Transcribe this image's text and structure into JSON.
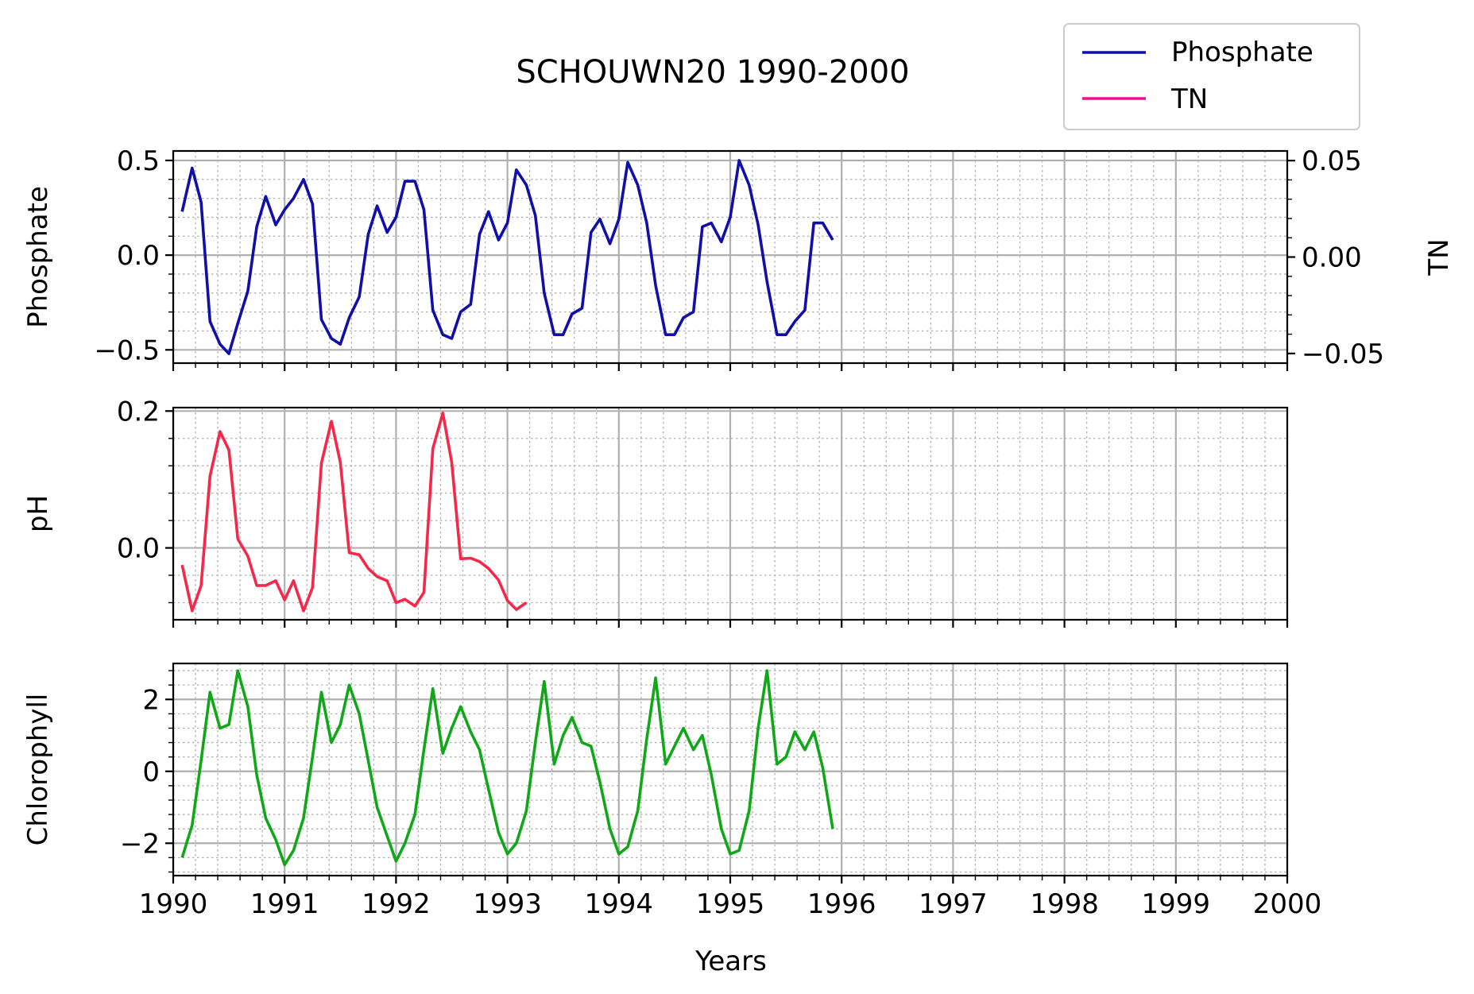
{
  "chart_data": {
    "type": "line",
    "title": "SCHOUWN20 1990-2000",
    "xlabel": "Years",
    "xlim": [
      1990,
      2000
    ],
    "x_ticks": [
      "1990",
      "1991",
      "1992",
      "1993",
      "1994",
      "1995",
      "1996",
      "1997",
      "1998",
      "1999",
      "2000"
    ],
    "grid": true,
    "legend": {
      "placement": "top-right",
      "entries": [
        {
          "label": "Phosphate",
          "color": "#1010a8"
        },
        {
          "label": "TN",
          "color": "#f0108f"
        }
      ]
    },
    "panels": [
      {
        "ylabel": "Phosphate",
        "ylim": [
          -0.57,
          0.55
        ],
        "yticks": [
          -0.5,
          0.0,
          0.5
        ],
        "ytick_labels": [
          "−0.5",
          "0.0",
          "0.5"
        ],
        "y2label": "TN",
        "y2lim": [
          -0.055,
          0.055
        ],
        "y2ticks": [
          -0.05,
          0.0,
          0.05
        ],
        "y2tick_labels": [
          "−0.05",
          "0.00",
          "0.05"
        ],
        "series": [
          {
            "name": "Phosphate",
            "color": "#1010a8",
            "x": [
              1990.08,
              1990.17,
              1990.25,
              1990.33,
              1990.42,
              1990.5,
              1990.58,
              1990.67,
              1990.75,
              1990.83,
              1990.92,
              1991.0,
              1991.08,
              1991.17,
              1991.25,
              1991.33,
              1991.42,
              1991.5,
              1991.58,
              1991.67,
              1991.75,
              1991.83,
              1991.92,
              1992.0,
              1992.08,
              1992.17,
              1992.25,
              1992.33,
              1992.42,
              1992.5,
              1992.58,
              1992.67,
              1992.75,
              1992.83,
              1992.92,
              1993.0,
              1993.08,
              1993.17,
              1993.25,
              1993.33,
              1993.42,
              1993.5,
              1993.58,
              1993.67,
              1993.75,
              1993.83,
              1993.92,
              1994.0,
              1994.08,
              1994.17,
              1994.25,
              1994.33,
              1994.42,
              1994.5,
              1994.58,
              1994.67,
              1994.75,
              1994.83,
              1994.92,
              1995.0,
              1995.08,
              1995.17,
              1995.25,
              1995.33,
              1995.42,
              1995.5,
              1995.58,
              1995.67,
              1995.75,
              1995.83,
              1995.92
            ],
            "values": [
              0.23,
              0.46,
              0.28,
              -0.35,
              -0.47,
              -0.52,
              -0.36,
              -0.19,
              0.15,
              0.31,
              0.16,
              0.24,
              0.3,
              0.4,
              0.27,
              -0.34,
              -0.44,
              -0.47,
              -0.33,
              -0.22,
              0.11,
              0.26,
              0.12,
              0.2,
              0.39,
              0.39,
              0.24,
              -0.29,
              -0.42,
              -0.44,
              -0.3,
              -0.26,
              0.11,
              0.23,
              0.08,
              0.17,
              0.45,
              0.37,
              0.21,
              -0.2,
              -0.42,
              -0.42,
              -0.31,
              -0.28,
              0.12,
              0.19,
              0.06,
              0.19,
              0.49,
              0.37,
              0.17,
              -0.16,
              -0.42,
              -0.42,
              -0.33,
              -0.3,
              0.15,
              0.17,
              0.07,
              0.2,
              0.5,
              0.37,
              0.16,
              -0.14,
              -0.42,
              -0.42,
              -0.35,
              -0.29,
              0.17,
              0.17,
              0.08
            ]
          }
        ]
      },
      {
        "ylabel": "pH",
        "ylim": [
          -0.105,
          0.205
        ],
        "yticks": [
          0.0,
          0.2
        ],
        "ytick_labels": [
          "0.0",
          "0.2"
        ],
        "series": [
          {
            "name": "pH",
            "color": "#f5284a",
            "x": [
              1990.08,
              1990.17,
              1990.25,
              1990.33,
              1990.42,
              1990.5,
              1990.58,
              1990.67,
              1990.75,
              1990.83,
              1990.92,
              1991.0,
              1991.08,
              1991.17,
              1991.25,
              1991.33,
              1991.42,
              1991.5,
              1991.58,
              1991.67,
              1991.75,
              1991.83,
              1991.92,
              1992.0,
              1992.08,
              1992.17,
              1992.25,
              1992.33,
              1992.42,
              1992.5,
              1992.58,
              1992.67,
              1992.75,
              1992.83,
              1992.92,
              1993.0,
              1993.08,
              1993.17
            ],
            "values": [
              -0.025,
              -0.092,
              -0.055,
              0.105,
              0.17,
              0.143,
              0.013,
              -0.012,
              -0.055,
              -0.055,
              -0.048,
              -0.076,
              -0.048,
              -0.092,
              -0.058,
              0.124,
              0.185,
              0.125,
              -0.007,
              -0.01,
              -0.03,
              -0.042,
              -0.048,
              -0.08,
              -0.075,
              -0.085,
              -0.065,
              0.145,
              0.197,
              0.125,
              -0.016,
              -0.015,
              -0.02,
              -0.03,
              -0.047,
              -0.077,
              -0.09,
              -0.08
            ]
          }
        ]
      },
      {
        "ylabel": "Chlorophyll",
        "ylim": [
          -2.9,
          3.0
        ],
        "yticks": [
          -2,
          0,
          2
        ],
        "ytick_labels": [
          "−2",
          "0",
          "2"
        ],
        "series": [
          {
            "name": "Chlorophyll",
            "color": "#10a818",
            "x": [
              1990.08,
              1990.17,
              1990.25,
              1990.33,
              1990.42,
              1990.5,
              1990.58,
              1990.67,
              1990.75,
              1990.83,
              1990.92,
              1991.0,
              1991.08,
              1991.17,
              1991.25,
              1991.33,
              1991.42,
              1991.5,
              1991.58,
              1991.67,
              1991.75,
              1991.83,
              1991.92,
              1992.0,
              1992.08,
              1992.17,
              1992.25,
              1992.33,
              1992.42,
              1992.5,
              1992.58,
              1992.67,
              1992.75,
              1992.83,
              1992.92,
              1993.0,
              1993.08,
              1993.17,
              1993.25,
              1993.33,
              1993.42,
              1993.5,
              1993.58,
              1993.67,
              1993.75,
              1993.83,
              1993.92,
              1994.0,
              1994.08,
              1994.17,
              1994.25,
              1994.33,
              1994.42,
              1994.5,
              1994.58,
              1994.67,
              1994.75,
              1994.83,
              1994.92,
              1995.0,
              1995.08,
              1995.17,
              1995.25,
              1995.33,
              1995.42,
              1995.5,
              1995.58,
              1995.67,
              1995.75,
              1995.83,
              1995.92
            ],
            "values": [
              -2.4,
              -1.5,
              0.3,
              2.2,
              1.2,
              1.3,
              2.8,
              1.8,
              -0.1,
              -1.3,
              -1.9,
              -2.6,
              -2.2,
              -1.3,
              0.4,
              2.2,
              0.8,
              1.3,
              2.4,
              1.6,
              0.3,
              -1.0,
              -1.8,
              -2.5,
              -2.0,
              -1.2,
              0.6,
              2.3,
              0.5,
              1.2,
              1.8,
              1.1,
              0.6,
              -0.5,
              -1.7,
              -2.3,
              -2.0,
              -1.1,
              0.8,
              2.5,
              0.2,
              1.0,
              1.5,
              0.8,
              0.7,
              -0.3,
              -1.6,
              -2.3,
              -2.1,
              -1.1,
              0.9,
              2.6,
              0.2,
              0.7,
              1.2,
              0.6,
              1.0,
              -0.1,
              -1.6,
              -2.3,
              -2.2,
              -1.1,
              1.2,
              2.8,
              0.2,
              0.4,
              1.1,
              0.6,
              1.1,
              0.1,
              -1.6
            ]
          }
        ]
      }
    ]
  }
}
